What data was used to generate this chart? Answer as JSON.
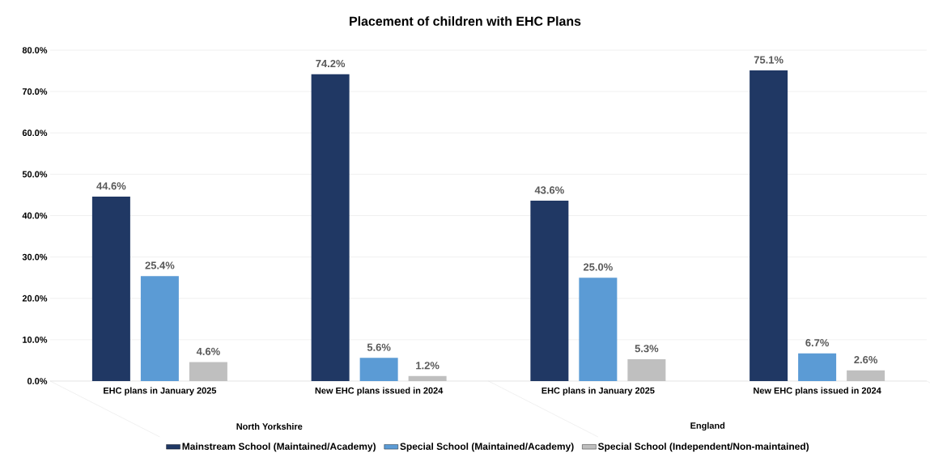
{
  "chart_data": {
    "type": "bar",
    "title": "Placement of children with EHC Plans",
    "categories": [
      "EHC plans in January 2025",
      "New EHC plans issued in 2024",
      "EHC plans in January 2025",
      "New EHC plans issued in 2024"
    ],
    "annotations": [
      "North Yorkshire",
      "England"
    ],
    "series": [
      {
        "name": "Mainstream School (Maintained/Academy)",
        "color": "#203864",
        "values": [
          44.6,
          74.2,
          43.6,
          75.1
        ],
        "value_labels": [
          "44.6%",
          "74.2%",
          "43.6%",
          "75.1%"
        ]
      },
      {
        "name": "Special School (Maintained/Academy)",
        "color": "#5b9bd5",
        "values": [
          25.4,
          5.6,
          25.0,
          6.7
        ],
        "value_labels": [
          "25.4%",
          "5.6%",
          "25.0%",
          "6.7%"
        ]
      },
      {
        "name": "Special School (Independent/Non-maintained)",
        "color": "#bfbfbf",
        "values": [
          4.6,
          1.2,
          5.3,
          2.6
        ],
        "value_labels": [
          "4.6%",
          "1.2%",
          "5.3%",
          "2.6%"
        ]
      }
    ],
    "ylim": [
      0,
      80
    ],
    "yticks": [
      {
        "value": 0,
        "label": "0.0%"
      },
      {
        "value": 10,
        "label": "10.0%"
      },
      {
        "value": 20,
        "label": "20.0%"
      },
      {
        "value": 30,
        "label": "30.0%"
      },
      {
        "value": 40,
        "label": "40.0%"
      },
      {
        "value": 50,
        "label": "50.0%"
      },
      {
        "value": 60,
        "label": "60.0%"
      },
      {
        "value": 70,
        "label": "70.0%"
      },
      {
        "value": 80,
        "label": "80.0%"
      }
    ],
    "grid": "y",
    "legend": "bottom"
  }
}
